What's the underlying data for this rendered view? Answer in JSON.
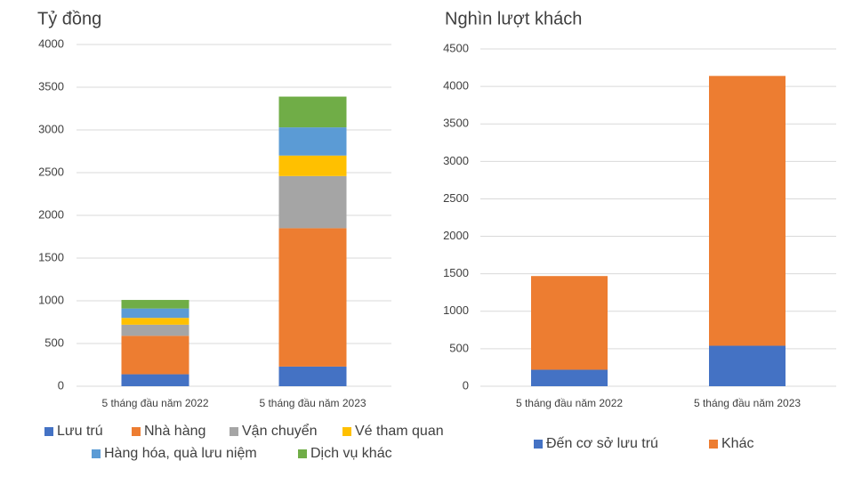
{
  "chart_data": [
    {
      "type": "bar",
      "stacked": true,
      "title": "Tỷ đồng",
      "categories": [
        "5 tháng đầu năm 2022",
        "5 tháng đầu năm 2023"
      ],
      "series": [
        {
          "name": "Lưu trú",
          "color": "#4472c4",
          "values": [
            140,
            230
          ]
        },
        {
          "name": "Nhà hàng",
          "color": "#ed7d31",
          "values": [
            450,
            1620
          ]
        },
        {
          "name": "Vận chuyển",
          "color": "#a5a5a5",
          "values": [
            130,
            610
          ]
        },
        {
          "name": "Vé tham quan",
          "color": "#ffc000",
          "values": [
            80,
            240
          ]
        },
        {
          "name": "Hàng hóa, quà lưu niệm",
          "color": "#5b9bd5",
          "values": [
            110,
            330
          ]
        },
        {
          "name": "Dịch vụ khác",
          "color": "#70ad47",
          "values": [
            100,
            360
          ]
        }
      ],
      "ylim": [
        0,
        4000
      ],
      "yticks": [
        0,
        500,
        1000,
        1500,
        2000,
        2500,
        3000,
        3500,
        4000
      ],
      "grid": true,
      "legend": "bottom"
    },
    {
      "type": "bar",
      "stacked": true,
      "title": "Nghìn lượt khách",
      "categories": [
        "5 tháng đầu năm 2022",
        "5 tháng đầu năm 2023"
      ],
      "series": [
        {
          "name": "Đến cơ sở lưu trú",
          "color": "#4472c4",
          "values": [
            220,
            540
          ]
        },
        {
          "name": "Khác",
          "color": "#ed7d31",
          "values": [
            1250,
            3600
          ]
        }
      ],
      "ylim": [
        0,
        4500
      ],
      "yticks": [
        0,
        500,
        1000,
        1500,
        2000,
        2500,
        3000,
        3500,
        4000,
        4500
      ],
      "grid": true,
      "legend": "bottom"
    }
  ]
}
